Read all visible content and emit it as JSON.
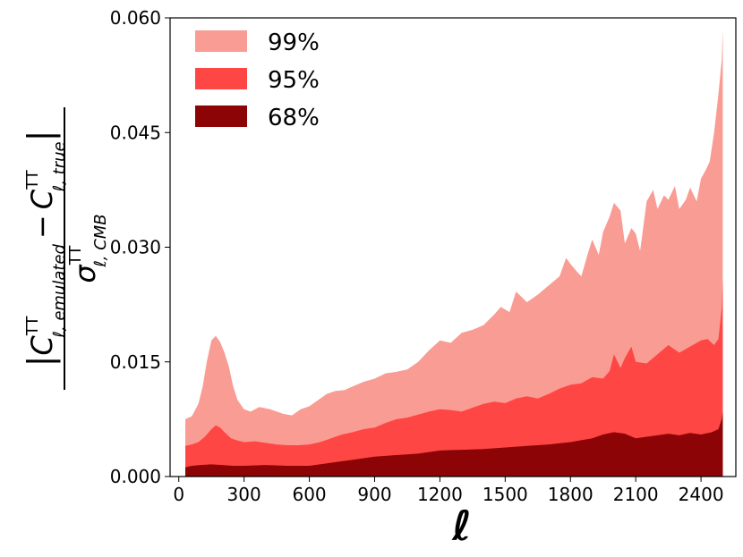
{
  "chart_data": {
    "type": "area",
    "xlabel": "ℓ",
    "ylabel": {
      "numerator": "|C_{ℓ,emulated}^{TT} − C_{ℓ,true}^{TT}|",
      "denominator": "σ_{ℓ,CMB}^{TT}",
      "parts": {
        "c_upper": "C",
        "tt": "TT",
        "ell_emulated": "ℓ, emulated",
        "minus": "−",
        "ell_true": "ℓ, true",
        "sigma": "σ",
        "ell_cmb": "ℓ, CMB"
      }
    },
    "xlim": [
      -40,
      2560
    ],
    "ylim": [
      0,
      0.06
    ],
    "xticks": [
      0,
      300,
      600,
      900,
      1200,
      1500,
      1800,
      2100,
      2400
    ],
    "yticks": [
      0.0,
      0.015,
      0.03,
      0.045,
      0.06
    ],
    "ytick_labels": [
      "0.000",
      "0.015",
      "0.030",
      "0.045",
      "0.060"
    ],
    "grid": false,
    "legend_position": "top-left",
    "series": [
      {
        "name": "99%",
        "color": "#f99c94",
        "x": [
          30,
          60,
          90,
          110,
          130,
          150,
          170,
          190,
          210,
          230,
          250,
          270,
          300,
          330,
          370,
          420,
          480,
          520,
          560,
          600,
          640,
          680,
          720,
          760,
          800,
          850,
          900,
          950,
          1000,
          1050,
          1100,
          1150,
          1200,
          1250,
          1300,
          1350,
          1400,
          1450,
          1480,
          1520,
          1550,
          1600,
          1650,
          1700,
          1750,
          1780,
          1800,
          1830,
          1850,
          1880,
          1900,
          1930,
          1950,
          1980,
          2000,
          2030,
          2050,
          2080,
          2100,
          2120,
          2150,
          2180,
          2200,
          2230,
          2250,
          2280,
          2300,
          2330,
          2350,
          2380,
          2400,
          2420,
          2440,
          2460,
          2480,
          2495,
          2500
        ],
        "values": [
          0.0075,
          0.0079,
          0.0095,
          0.0118,
          0.0152,
          0.0178,
          0.0184,
          0.0176,
          0.0162,
          0.0144,
          0.0118,
          0.01,
          0.0088,
          0.0085,
          0.0091,
          0.0088,
          0.0082,
          0.008,
          0.0088,
          0.0092,
          0.01,
          0.0108,
          0.0112,
          0.0113,
          0.0118,
          0.0124,
          0.0128,
          0.0135,
          0.0137,
          0.014,
          0.015,
          0.0165,
          0.0178,
          0.0175,
          0.0188,
          0.0192,
          0.0198,
          0.0212,
          0.0222,
          0.0215,
          0.0242,
          0.0228,
          0.0238,
          0.025,
          0.0262,
          0.0286,
          0.0278,
          0.0268,
          0.0262,
          0.0292,
          0.031,
          0.029,
          0.032,
          0.034,
          0.0358,
          0.0348,
          0.0305,
          0.0325,
          0.0318,
          0.0295,
          0.036,
          0.0375,
          0.035,
          0.0368,
          0.0362,
          0.038,
          0.035,
          0.0362,
          0.0378,
          0.036,
          0.039,
          0.04,
          0.0412,
          0.045,
          0.05,
          0.0545,
          0.0585
        ]
      },
      {
        "name": "95%",
        "color": "#fe4644",
        "x": [
          30,
          60,
          90,
          120,
          150,
          170,
          190,
          210,
          240,
          270,
          300,
          350,
          400,
          450,
          500,
          550,
          600,
          650,
          700,
          750,
          800,
          850,
          900,
          950,
          1000,
          1050,
          1100,
          1150,
          1200,
          1250,
          1300,
          1350,
          1400,
          1450,
          1500,
          1550,
          1600,
          1650,
          1700,
          1750,
          1800,
          1850,
          1900,
          1950,
          1980,
          2000,
          2030,
          2050,
          2080,
          2100,
          2150,
          2200,
          2250,
          2300,
          2350,
          2400,
          2430,
          2460,
          2480,
          2495,
          2500
        ],
        "values": [
          0.004,
          0.0042,
          0.0045,
          0.0052,
          0.0062,
          0.0067,
          0.0064,
          0.0058,
          0.005,
          0.0047,
          0.0045,
          0.0046,
          0.0044,
          0.0042,
          0.0041,
          0.0041,
          0.0042,
          0.0045,
          0.005,
          0.0055,
          0.0058,
          0.0062,
          0.0064,
          0.007,
          0.0075,
          0.0077,
          0.0081,
          0.0085,
          0.0088,
          0.0087,
          0.0085,
          0.009,
          0.0095,
          0.0098,
          0.0096,
          0.0102,
          0.0105,
          0.0102,
          0.0108,
          0.0115,
          0.012,
          0.0122,
          0.013,
          0.0128,
          0.0138,
          0.016,
          0.0142,
          0.0155,
          0.017,
          0.015,
          0.0148,
          0.016,
          0.0172,
          0.0162,
          0.017,
          0.0178,
          0.018,
          0.0172,
          0.018,
          0.022,
          0.0258
        ]
      },
      {
        "name": "68%",
        "color": "#8c0405",
        "x": [
          30,
          60,
          100,
          150,
          200,
          250,
          300,
          400,
          500,
          600,
          700,
          800,
          900,
          1000,
          1100,
          1200,
          1300,
          1400,
          1500,
          1600,
          1700,
          1800,
          1900,
          1950,
          2000,
          2050,
          2100,
          2150,
          2200,
          2250,
          2300,
          2350,
          2400,
          2450,
          2480,
          2495,
          2500
        ],
        "values": [
          0.0012,
          0.0014,
          0.0015,
          0.0016,
          0.0015,
          0.0014,
          0.0014,
          0.0015,
          0.0014,
          0.0014,
          0.0018,
          0.0022,
          0.0026,
          0.0028,
          0.003,
          0.0034,
          0.0035,
          0.0036,
          0.0038,
          0.004,
          0.0042,
          0.0045,
          0.005,
          0.0055,
          0.0058,
          0.0056,
          0.005,
          0.0052,
          0.0054,
          0.0056,
          0.0054,
          0.0057,
          0.0055,
          0.0058,
          0.0062,
          0.0075,
          0.0085
        ]
      }
    ]
  }
}
